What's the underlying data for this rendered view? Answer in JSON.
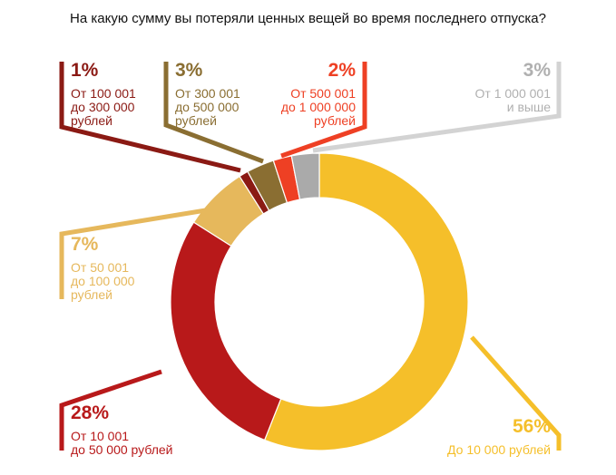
{
  "chart_data": {
    "type": "pie",
    "donut": true,
    "title": "На какую сумму вы потеряли ценных вещей во время последнего отпуска?",
    "slices": [
      {
        "pct_label": "56%",
        "value": 56,
        "label": "До 10 000 рублей",
        "color": "#F5BF2A",
        "line": "#F5BF2A"
      },
      {
        "pct_label": "28%",
        "value": 28,
        "label": "От 10 001\nдо 50 000 рублей",
        "color": "#B8191A",
        "line": "#B8191A"
      },
      {
        "pct_label": "7%",
        "value": 7,
        "label": "От 50 001\nдо 100 000\nрублей",
        "color": "#E6B85C",
        "line": "#E6B85C"
      },
      {
        "pct_label": "1%",
        "value": 1,
        "label": "От 100 001\nдо 300 000\nрублей",
        "color": "#8B1A14",
        "line": "#8B1A14"
      },
      {
        "pct_label": "3%",
        "value": 3,
        "label": "От 300 001\nдо 500 000\nрублей",
        "color": "#8A6E32",
        "line": "#8A6E32"
      },
      {
        "pct_label": "2%",
        "value": 2,
        "label": "От 500 001\nдо 1 000 000\nрублей",
        "color": "#EE4024",
        "line": "#EE4024"
      },
      {
        "pct_label": "3%",
        "value": 3,
        "label": "От 1 000 001\nи выше",
        "color": "#AAAAAA",
        "line": "#D3D3D3"
      }
    ]
  }
}
